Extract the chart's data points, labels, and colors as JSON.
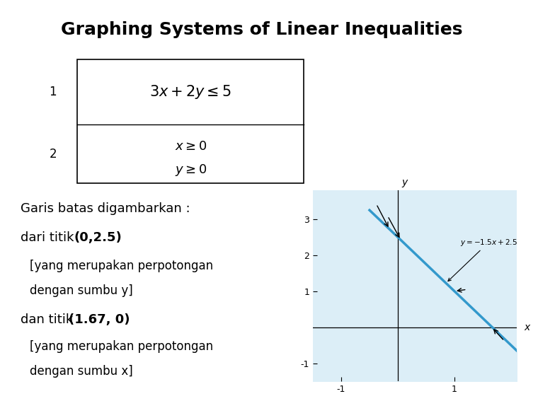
{
  "title": "Graphing Systems of Linear Inequalities",
  "title_fontsize": 18,
  "title_fontweight": "bold",
  "bg_color": "#ffffff",
  "table_row1_label": "1",
  "table_row2_label": "2",
  "table_eq1": "$3x + 2y \\leq 5$",
  "table_eq2a": "$x \\geq 0$",
  "table_eq2b": "$y \\geq 0$",
  "graph_bg_color": "#dceef7",
  "line_color": "#3399cc",
  "line_width": 2.5,
  "slope": -1.5,
  "intercept": 2.5,
  "graph_xlim": [
    -1.5,
    2.1
  ],
  "graph_ylim": [
    -1.5,
    3.8
  ],
  "graph_xticks": [
    -1,
    1
  ],
  "graph_yticks": [
    -1,
    1,
    2,
    3
  ],
  "annotation_text": "$y = -1.5x + 2.5$",
  "arrow_color": "#000000"
}
